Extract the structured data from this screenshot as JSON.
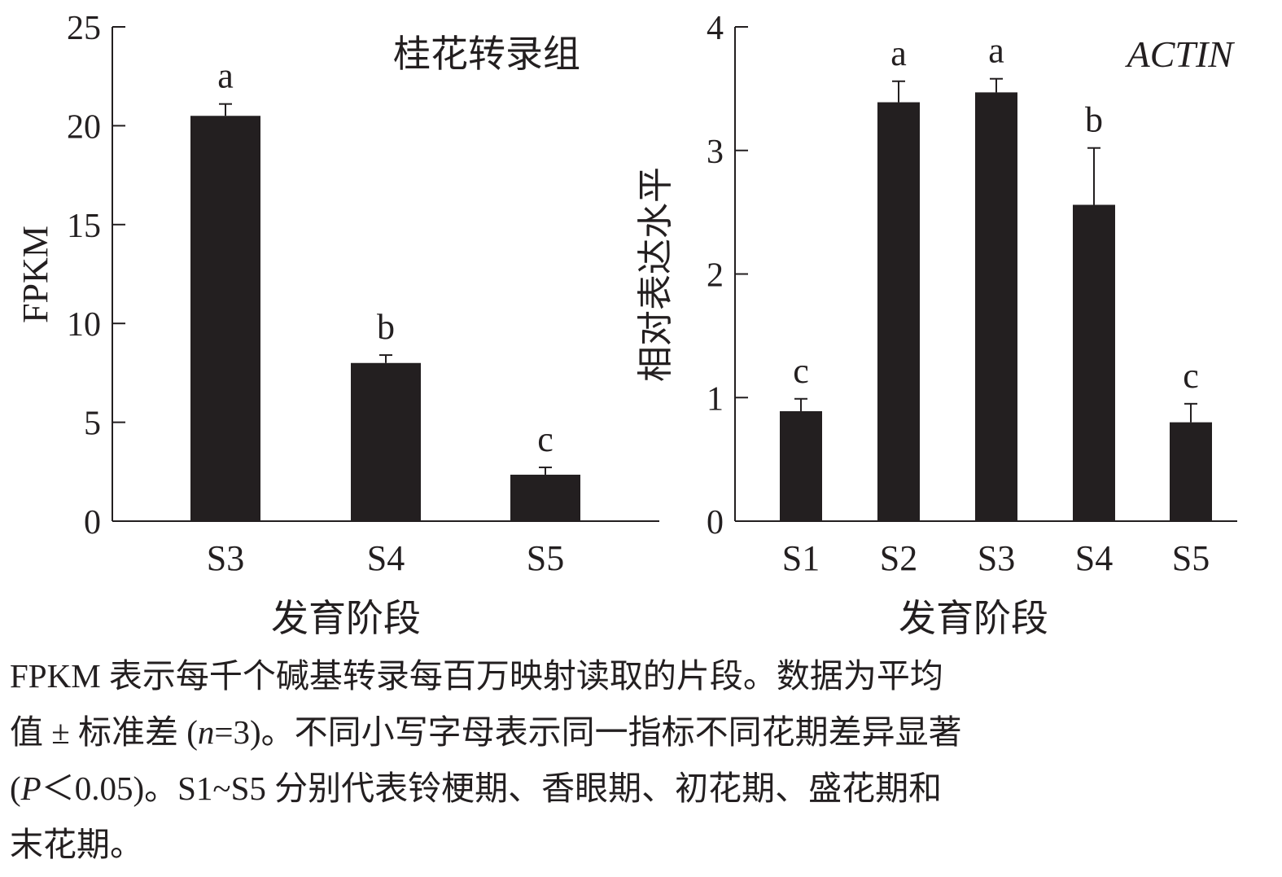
{
  "chart_data": [
    {
      "type": "bar",
      "title": "桂花转录组",
      "xlabel": "发育阶段",
      "ylabel": "FPKM",
      "categories": [
        "S3",
        "S4",
        "S5"
      ],
      "values": [
        20.5,
        8.0,
        2.35
      ],
      "errors": [
        0.6,
        0.4,
        0.37
      ],
      "letters": [
        "a",
        "b",
        "c"
      ],
      "ylim": [
        0,
        25
      ],
      "yticks": [
        0,
        5,
        10,
        15,
        20,
        25
      ],
      "bar_color": "#231f20",
      "grid": false
    },
    {
      "type": "bar",
      "title": "ACTIN",
      "xlabel": "发育阶段",
      "ylabel": "相对表达水平",
      "categories": [
        "S1",
        "S2",
        "S3",
        "S4",
        "S5"
      ],
      "values": [
        0.89,
        3.39,
        3.47,
        2.56,
        0.8
      ],
      "errors": [
        0.1,
        0.17,
        0.11,
        0.46,
        0.15
      ],
      "letters": [
        "c",
        "a",
        "a",
        "b",
        "c"
      ],
      "ylim": [
        0,
        4
      ],
      "yticks": [
        0,
        1,
        2,
        3,
        4
      ],
      "bar_color": "#231f20",
      "grid": false
    }
  ],
  "caption": {
    "line1": "FPKM 表示每千个碱基转录每百万映射读取的片段。数据为平均",
    "line2_a": "值 ± 标准差 (",
    "line2_n": "n",
    "line2_b": "=3)。不同小写字母表示同一指标不同花期差异显著",
    "line3_a": "(",
    "line3_p": "P",
    "line3_b": "＜0.05)。S1~S5 分别代表铃梗期、香眼期、初花期、盛花期和",
    "line4": "末花期。"
  }
}
